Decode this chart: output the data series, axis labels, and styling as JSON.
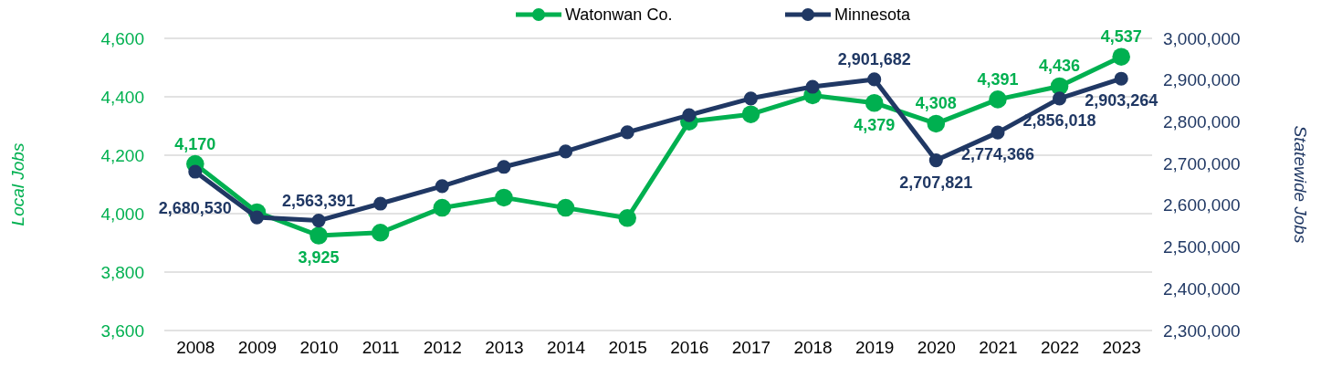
{
  "chart_data": {
    "type": "line",
    "categories": [
      "2008",
      "2009",
      "2010",
      "2011",
      "2012",
      "2013",
      "2014",
      "2015",
      "2016",
      "2017",
      "2018",
      "2019",
      "2020",
      "2021",
      "2022",
      "2023"
    ],
    "series": [
      {
        "name": "Watonwan Co.",
        "color": "#00b050",
        "values": [
          4170,
          4005,
          3925,
          3935,
          4020,
          4055,
          4020,
          3985,
          4315,
          4340,
          4405,
          4379,
          4308,
          4391,
          4436,
          4537
        ],
        "value_labels": [
          "4,170",
          null,
          "3,925",
          null,
          null,
          null,
          null,
          null,
          null,
          null,
          null,
          "4,379",
          "4,308",
          "4,391",
          "4,436",
          "4,537"
        ]
      },
      {
        "name": "Minnesota",
        "color": "#203864",
        "axis": "y2",
        "values": [
          2680530,
          2571000,
          2563391,
          2604000,
          2646000,
          2692000,
          2729000,
          2775000,
          2816000,
          2856000,
          2884000,
          2901682,
          2707821,
          2774366,
          2856018,
          2903264
        ],
        "value_labels": [
          "2,680,530",
          null,
          "2,563,391",
          null,
          null,
          null,
          null,
          null,
          null,
          null,
          null,
          "2,901,682",
          "2,707,821",
          "2,774,366",
          "2,856,018",
          "2,903,264"
        ]
      }
    ],
    "ylabel": "Local Jobs",
    "y2label": "Statewide Jobs",
    "ylim": [
      3600,
      4600
    ],
    "yticks": [
      {
        "value": 3600,
        "label": "3,600"
      },
      {
        "value": 3800,
        "label": "3,800"
      },
      {
        "value": 4000,
        "label": "4,000"
      },
      {
        "value": 4200,
        "label": "4,200"
      },
      {
        "value": 4400,
        "label": "4,400"
      },
      {
        "value": 4600,
        "label": "4,600"
      }
    ],
    "y2lim": [
      2300000,
      3000000
    ],
    "y2ticks": [
      {
        "value": 2300000,
        "label": "2,300,000"
      },
      {
        "value": 2400000,
        "label": "2,400,000"
      },
      {
        "value": 2500000,
        "label": "2,500,000"
      },
      {
        "value": 2600000,
        "label": "2,600,000"
      },
      {
        "value": 2700000,
        "label": "2,700,000"
      },
      {
        "value": 2800000,
        "label": "2,800,000"
      },
      {
        "value": 2900000,
        "label": "2,900,000"
      },
      {
        "value": 3000000,
        "label": "3,000,000"
      }
    ],
    "grid": "y",
    "legend": "top",
    "marker": "circle",
    "line_style": "solid"
  }
}
